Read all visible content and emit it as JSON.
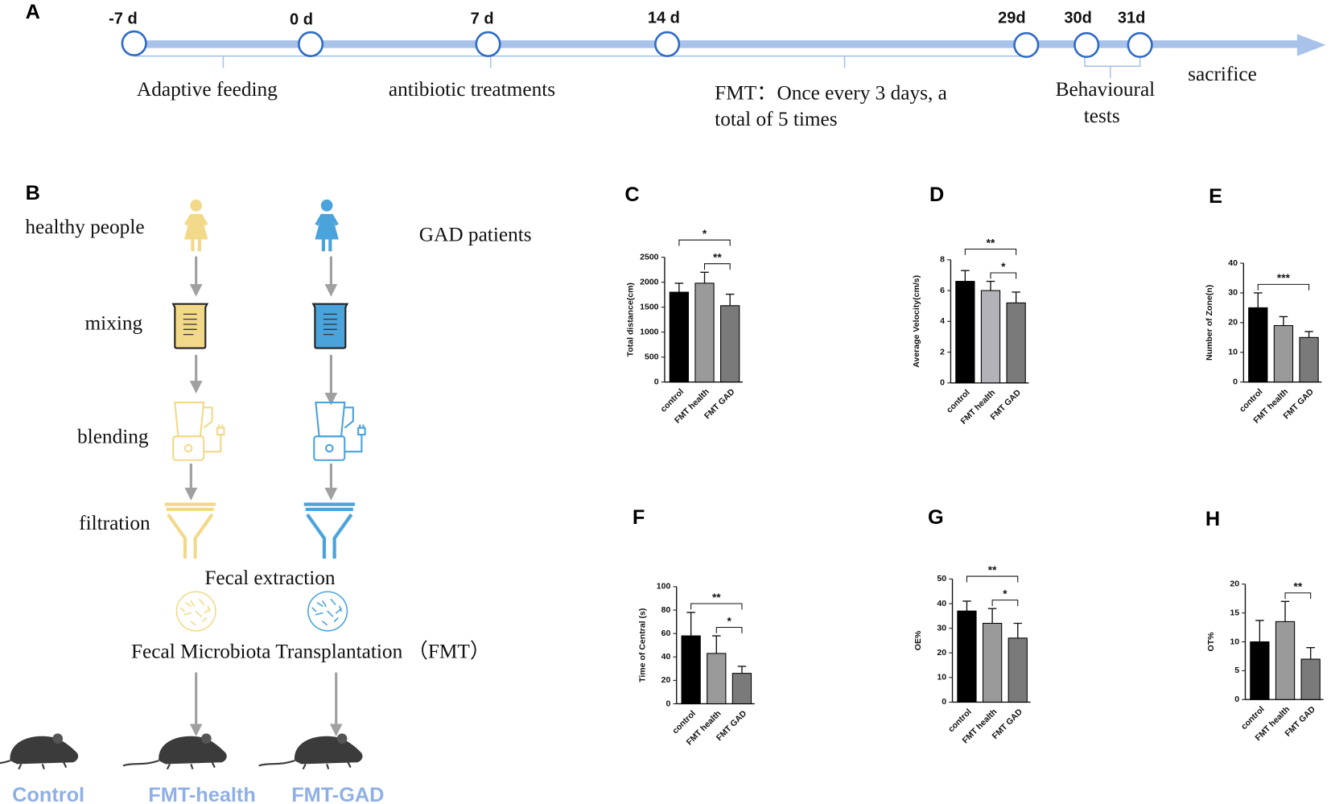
{
  "panel_a": {
    "label": "A",
    "days": [
      "-7 d",
      "0 d",
      "7 d",
      "14 d",
      "29d",
      "30d",
      "31d"
    ],
    "phases": [
      [
        "Adaptive feeding"
      ],
      [
        "antibiotic treatments"
      ],
      [
        "FMT：Once every 3 days, a",
        "total of 5 times"
      ],
      [
        "Behavioural",
        "tests"
      ],
      [
        "sacrifice"
      ]
    ]
  },
  "panel_b": {
    "label": "B",
    "sources": [
      "healthy people",
      "GAD patients"
    ],
    "steps": [
      "mixing",
      "blending",
      "filtration"
    ],
    "extraction": "Fecal extraction",
    "transplant": "Fecal Microbiota Transplantation （FMT）",
    "groups": [
      "Control",
      "FMT-health",
      "FMT-GAD"
    ]
  },
  "chart_data": [
    {
      "type": "bar",
      "label": "C",
      "ylabel": "Total distance(cm)",
      "categories": [
        "control",
        "FMT health",
        "FMT GAD"
      ],
      "values": [
        1800,
        1980,
        1530
      ],
      "errors": [
        180,
        220,
        230
      ],
      "colors": [
        "#000000",
        "#9a9a9a",
        "#7a7a7a"
      ],
      "ylim": [
        0,
        2500
      ],
      "yticks": [
        0,
        500,
        1000,
        1500,
        2000,
        2500
      ],
      "annotations": [
        {
          "text": "*",
          "between": [
            "control",
            "FMT GAD"
          ]
        },
        {
          "text": "**",
          "between": [
            "FMT health",
            "FMT GAD"
          ]
        }
      ]
    },
    {
      "type": "bar",
      "label": "D",
      "ylabel": "Average Velocity(cm/s)",
      "categories": [
        "control",
        "FMT health",
        "FMT GAD"
      ],
      "values": [
        6.6,
        6.0,
        5.2
      ],
      "errors": [
        0.7,
        0.6,
        0.7
      ],
      "colors": [
        "#000000",
        "#b2b2b8",
        "#7a7a7a"
      ],
      "ylim": [
        0,
        8
      ],
      "yticks": [
        0,
        2,
        4,
        6,
        8
      ],
      "annotations": [
        {
          "text": "**",
          "between": [
            "control",
            "FMT GAD"
          ]
        },
        {
          "text": "*",
          "between": [
            "FMT health",
            "FMT GAD"
          ]
        }
      ]
    },
    {
      "type": "bar",
      "label": "E",
      "ylabel": "Number of Zone(n)",
      "categories": [
        "control",
        "FMT health",
        "FMT GAD"
      ],
      "values": [
        25,
        19,
        15
      ],
      "errors": [
        5,
        3,
        2
      ],
      "colors": [
        "#000000",
        "#9a9a9a",
        "#7a7a7a"
      ],
      "ylim": [
        0,
        40
      ],
      "yticks": [
        0,
        10,
        20,
        30,
        40
      ],
      "annotations": [
        {
          "text": "***",
          "between": [
            "control",
            "FMT GAD"
          ]
        }
      ]
    },
    {
      "type": "bar",
      "label": "F",
      "ylabel": "Time of Central (s)",
      "categories": [
        "control",
        "FMT health",
        "FMT GAD"
      ],
      "values": [
        58,
        43,
        26
      ],
      "errors": [
        20,
        15,
        6
      ],
      "colors": [
        "#000000",
        "#9a9a9a",
        "#7a7a7a"
      ],
      "ylim": [
        0,
        100
      ],
      "yticks": [
        0,
        20,
        40,
        60,
        80,
        100
      ],
      "annotations": [
        {
          "text": "**",
          "between": [
            "control",
            "FMT GAD"
          ]
        },
        {
          "text": "*",
          "between": [
            "FMT health",
            "FMT GAD"
          ]
        }
      ]
    },
    {
      "type": "bar",
      "label": "G",
      "ylabel": "OE%",
      "categories": [
        "control",
        "FMT health",
        "FMT GAD"
      ],
      "values": [
        37,
        32,
        26
      ],
      "errors": [
        4,
        6,
        6
      ],
      "colors": [
        "#000000",
        "#9a9a9a",
        "#7a7a7a"
      ],
      "ylim": [
        0,
        50
      ],
      "yticks": [
        0,
        10,
        20,
        30,
        40,
        50
      ],
      "annotations": [
        {
          "text": "**",
          "between": [
            "control",
            "FMT GAD"
          ]
        },
        {
          "text": "*",
          "between": [
            "FMT health",
            "FMT GAD"
          ]
        }
      ]
    },
    {
      "type": "bar",
      "label": "H",
      "ylabel": "OT%",
      "categories": [
        "control",
        "FMT health",
        "FMT GAD"
      ],
      "values": [
        10,
        13.5,
        7
      ],
      "errors": [
        3.7,
        3.5,
        2
      ],
      "colors": [
        "#000000",
        "#9a9a9a",
        "#7a7a7a"
      ],
      "ylim": [
        0,
        20
      ],
      "yticks": [
        0,
        5,
        10,
        15,
        20
      ],
      "annotations": [
        {
          "text": "**",
          "between": [
            "FMT health",
            "FMT GAD"
          ]
        }
      ]
    }
  ]
}
